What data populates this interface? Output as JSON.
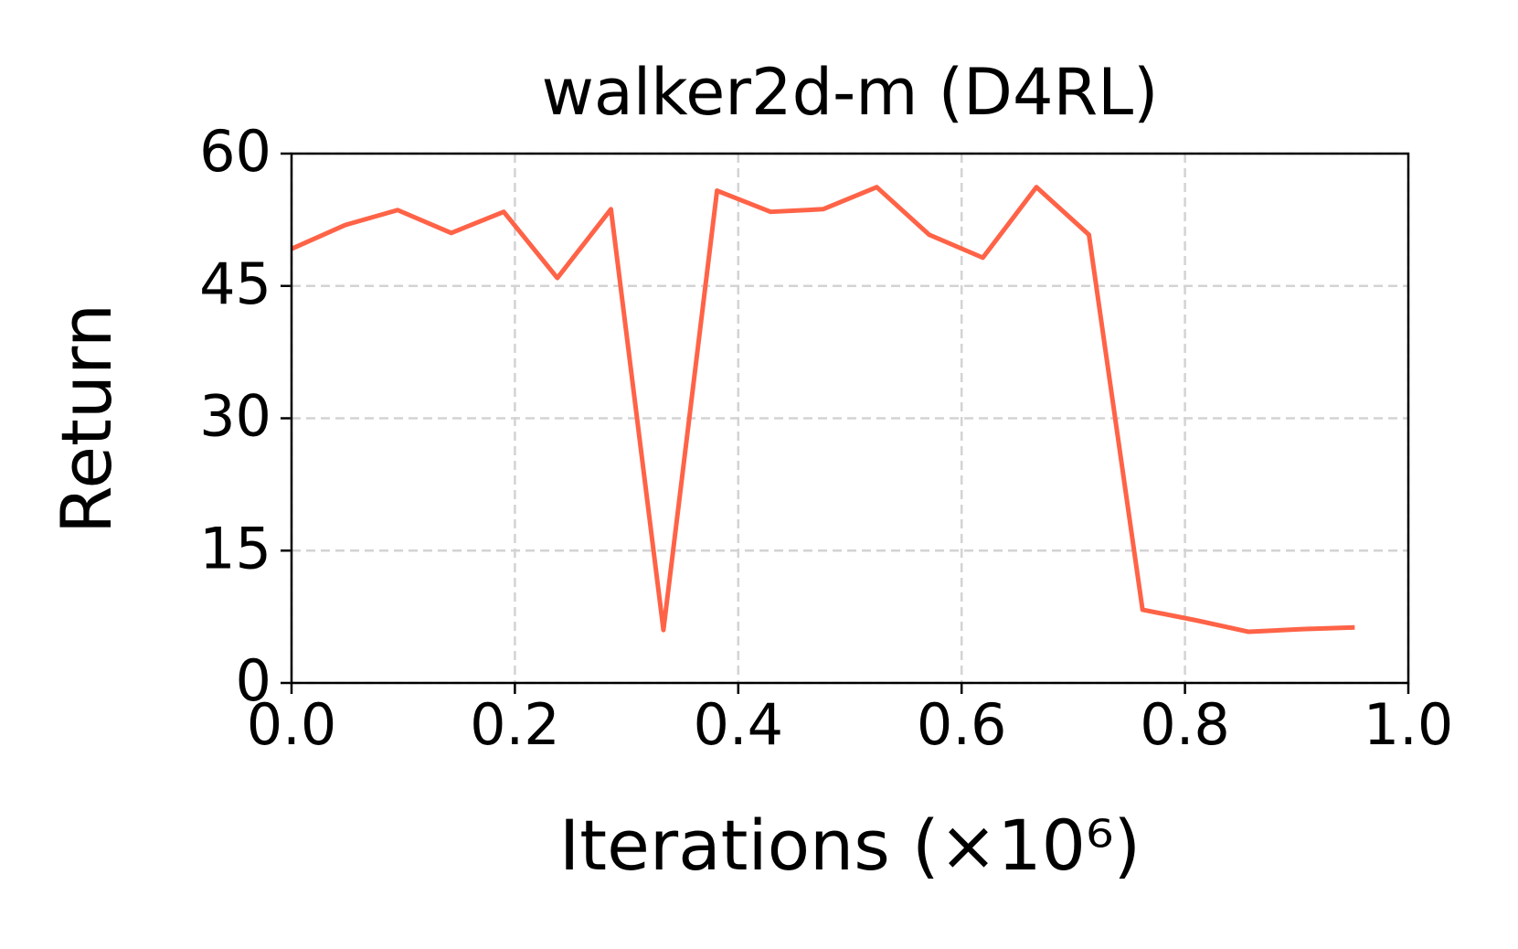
{
  "chart_data": {
    "type": "line",
    "title": "walker2d-m (D4RL)",
    "xlabel": "Iterations (×10⁶)",
    "ylabel": "Return",
    "x": [
      0.0,
      0.048,
      0.095,
      0.143,
      0.19,
      0.238,
      0.286,
      0.333,
      0.381,
      0.429,
      0.476,
      0.524,
      0.571,
      0.619,
      0.667,
      0.714,
      0.762,
      0.81,
      0.857,
      0.905,
      0.952
    ],
    "series": [
      {
        "name": "Return",
        "color": "#ff6347",
        "values": [
          49.2,
          51.9,
          53.6,
          51.0,
          53.4,
          45.9,
          53.7,
          6.0,
          55.8,
          53.4,
          53.7,
          56.2,
          50.8,
          48.2,
          56.2,
          50.8,
          8.3,
          7.1,
          5.8,
          6.1,
          6.3
        ]
      }
    ],
    "xlim": [
      0,
      1
    ],
    "ylim": [
      0,
      60
    ],
    "xticks": [
      {
        "value": 0,
        "label": "0.0"
      },
      0.2,
      0.4,
      0.6,
      0.8,
      {
        "value": 1,
        "label": "1.0"
      }
    ],
    "yticks": [
      0,
      15,
      30,
      45,
      60
    ],
    "grid": true
  }
}
